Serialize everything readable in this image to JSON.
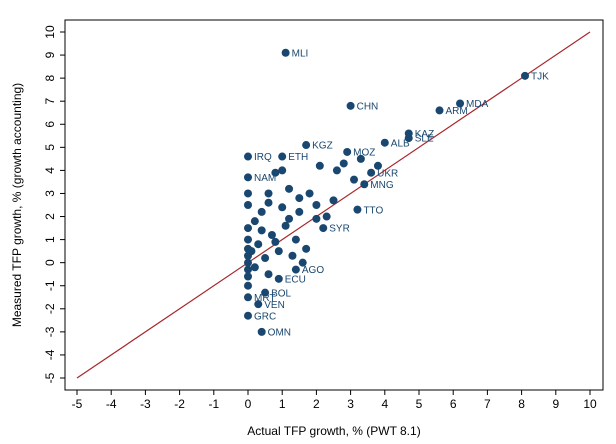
{
  "chart_data": {
    "type": "scatter",
    "x_label": "Actual TFP growth, % (PWT 8.1)",
    "y_label": "Measured TFP growth, % (growth accounting)",
    "xlim": [
      -5,
      10
    ],
    "ylim": [
      -5,
      10
    ],
    "xticks": [
      -5,
      -4,
      -3,
      -2,
      -1,
      0,
      1,
      2,
      3,
      4,
      5,
      6,
      7,
      8,
      9,
      10
    ],
    "yticks": [
      -5,
      -4,
      -3,
      -2,
      -1,
      0,
      1,
      2,
      3,
      4,
      5,
      6,
      7,
      8,
      9,
      10
    ],
    "reference_line": {
      "x": [
        -5,
        10
      ],
      "y": [
        -5,
        10
      ],
      "color": "#a8262b"
    },
    "series": [
      {
        "color": "#1a476f",
        "x": [
          1.1,
          8.1,
          6.2,
          5.6,
          3.0,
          4.7,
          4.7,
          4.0,
          1.7,
          2.9,
          0.0,
          1.0,
          3.6,
          3.4,
          0.0,
          3.2,
          2.2,
          1.4,
          0.9,
          0.5,
          0.0,
          0.3,
          0.0,
          0.4,
          0.0,
          0.0,
          0.0,
          0.0,
          0.0,
          0.0,
          0.0,
          0.0,
          0.0,
          0.0,
          0.2,
          0.4,
          0.6,
          0.8,
          1.0,
          1.2,
          1.5,
          1.8,
          2.0,
          2.3,
          2.5,
          0.3,
          0.7,
          1.1,
          1.4,
          1.7,
          2.0,
          0.5,
          0.9,
          1.3,
          1.6,
          2.1,
          2.6,
          2.8,
          3.1,
          3.3,
          3.8,
          0.2,
          0.6,
          1.0,
          1.5,
          0.4,
          0.8,
          1.2,
          0.1,
          0.6
        ],
        "y": [
          9.1,
          8.1,
          6.9,
          6.6,
          6.8,
          5.6,
          5.4,
          5.2,
          5.1,
          4.8,
          4.6,
          4.6,
          3.9,
          3.4,
          3.7,
          2.3,
          1.5,
          -0.3,
          -0.7,
          -1.3,
          -1.5,
          -1.8,
          -2.3,
          -3.0,
          3.0,
          2.5,
          1.5,
          1.0,
          0.6,
          0.3,
          0.0,
          -0.3,
          -0.6,
          -1.0,
          1.8,
          2.2,
          3.0,
          3.9,
          4.0,
          3.2,
          2.8,
          3.0,
          2.5,
          2.0,
          2.7,
          0.8,
          1.2,
          1.6,
          1.0,
          0.6,
          1.9,
          0.2,
          0.5,
          0.3,
          0.0,
          4.2,
          4.0,
          4.3,
          3.6,
          4.5,
          4.2,
          -0.2,
          2.6,
          2.4,
          2.2,
          1.4,
          0.9,
          1.9,
          0.5,
          -0.5
        ],
        "labels": [
          "MLI",
          "TJK",
          "MDA",
          "ARM",
          "CHN",
          "KAZ",
          "SLE",
          "ALB",
          "KGZ",
          "MOZ",
          "IRQ",
          "ETH",
          "UKR",
          "MNG",
          "NAM",
          "TTO",
          "SYR",
          "AGO",
          "ECU",
          "BOL",
          "MRT",
          "VEN",
          "GRC",
          "OMN",
          null,
          null,
          null,
          null,
          null,
          null,
          null,
          null,
          null,
          null,
          null,
          null,
          null,
          null,
          null,
          null,
          null,
          null,
          null,
          null,
          null,
          null,
          null,
          null,
          null,
          null,
          null,
          null,
          null,
          null,
          null,
          null,
          null,
          null,
          null,
          null,
          null,
          null,
          null,
          null,
          null,
          null,
          null,
          null,
          null,
          null
        ]
      }
    ]
  }
}
